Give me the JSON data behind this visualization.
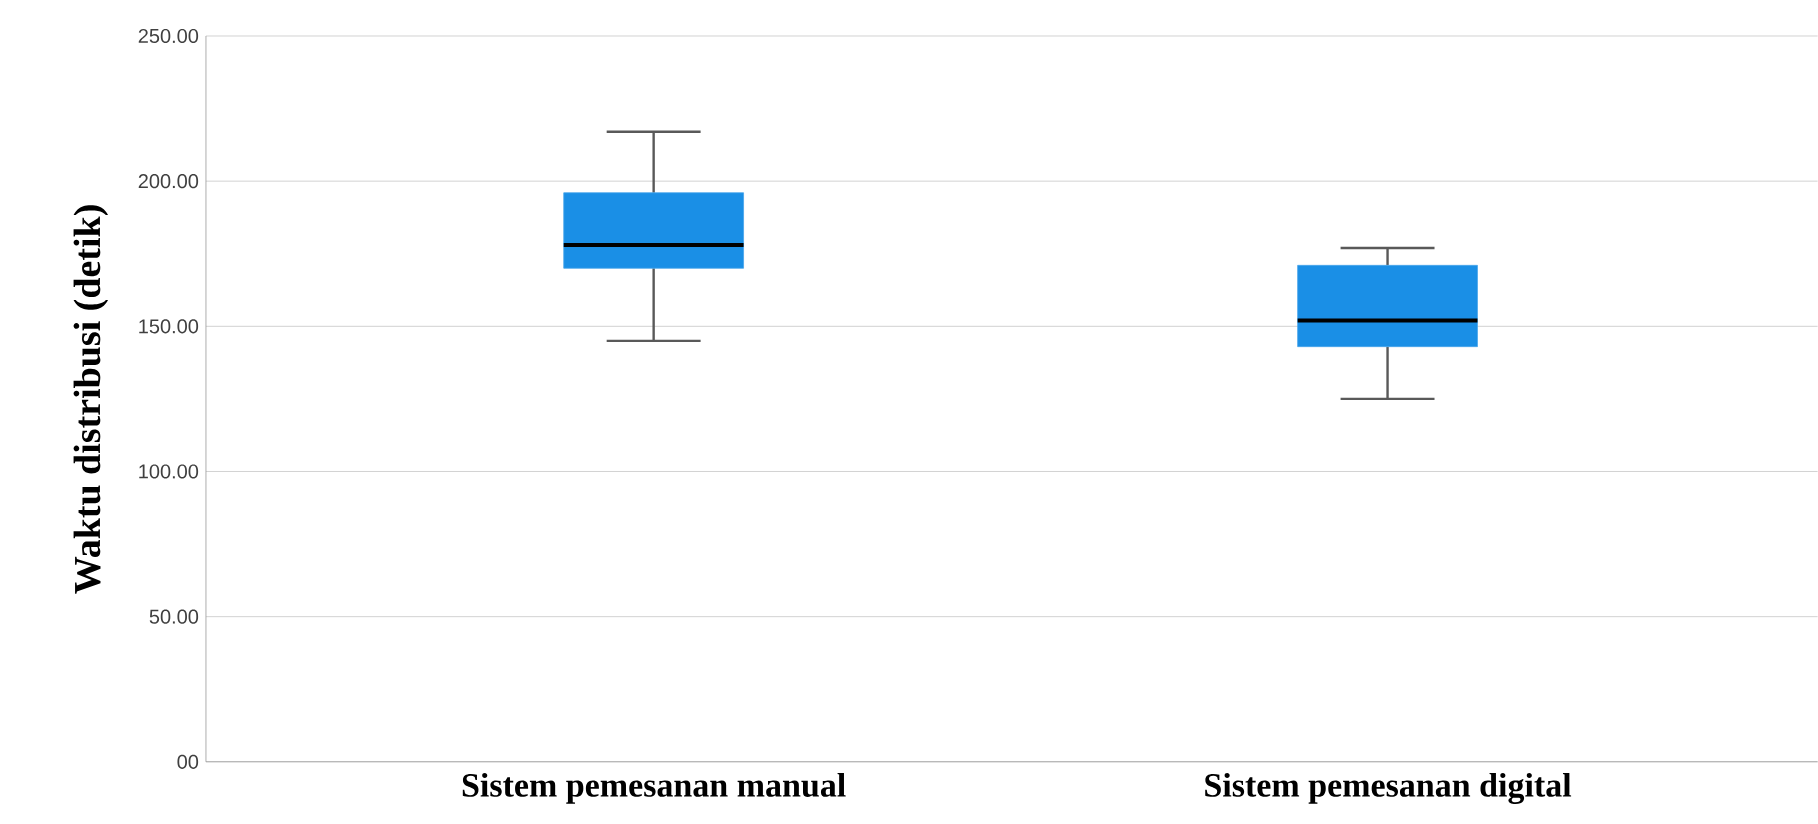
{
  "chart_data": {
    "type": "box",
    "ylabel": "Waktu distribusi (detik)",
    "categories": [
      "Sistem pemesanan manual",
      "Sistem pemesanan digital"
    ],
    "color": "#1a8fe6",
    "boxes": [
      {
        "low": 145,
        "q1": 170,
        "median": 178,
        "q3": 196,
        "high": 217
      },
      {
        "low": 125,
        "q1": 143,
        "median": 152,
        "q3": 171,
        "high": 177
      }
    ],
    "ylim": [
      0,
      250
    ],
    "yticks": [
      {
        "value": 0,
        "label": "00"
      },
      {
        "value": 50,
        "label": "50.00"
      },
      {
        "value": 100,
        "label": "100.00"
      },
      {
        "value": 150,
        "label": "150.00"
      },
      {
        "value": 200,
        "label": "200.00"
      },
      {
        "value": 250,
        "label": "250.00"
      }
    ],
    "grid": "y"
  }
}
